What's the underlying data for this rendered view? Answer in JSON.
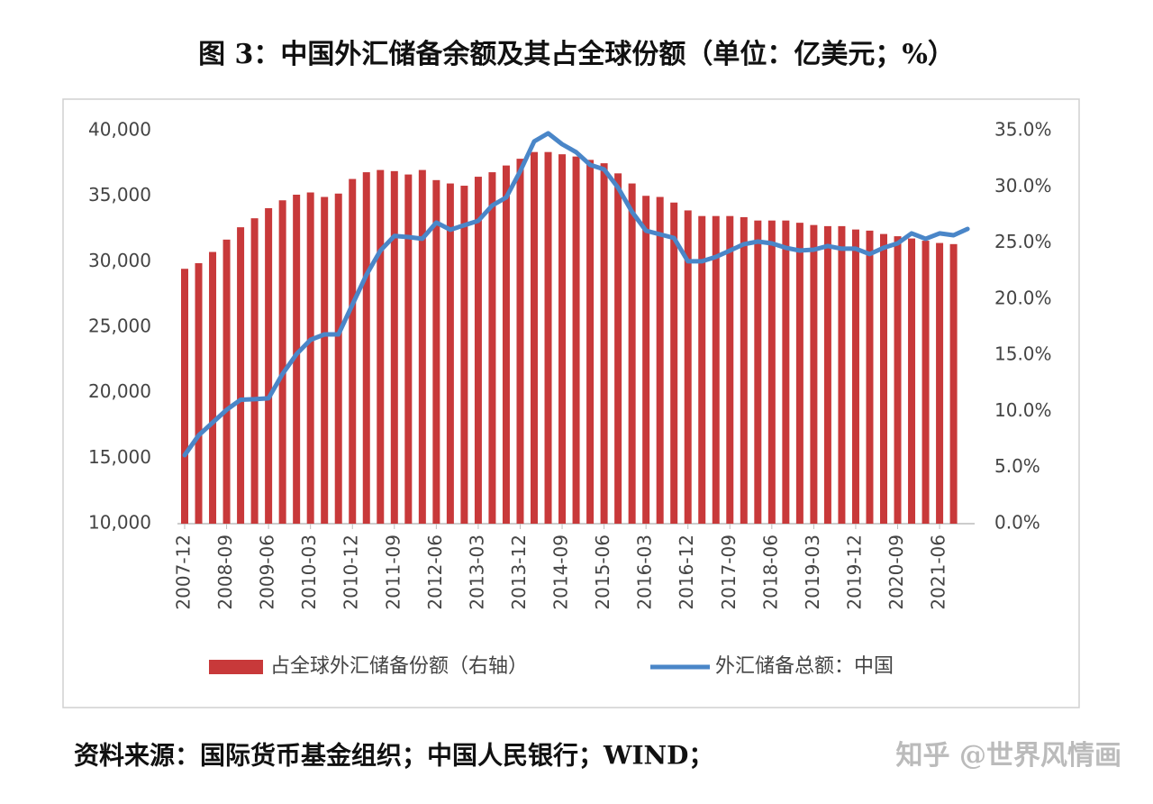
{
  "chart_data": {
    "type": "combo",
    "title": "图 3：中国外汇储备余额及其占全球份额（单位：亿美元；%）",
    "source": "资料来源：国际货币基金组织；中国人民银行；WIND；",
    "watermark": "知乎 @世界风情画",
    "categories": [
      "2007-12",
      null,
      null,
      "2008-09",
      null,
      null,
      "2009-06",
      null,
      null,
      "2010-03",
      null,
      null,
      "2010-12",
      null,
      null,
      "2011-09",
      null,
      null,
      "2012-06",
      null,
      null,
      "2013-03",
      null,
      null,
      "2013-12",
      null,
      null,
      "2014-09",
      null,
      null,
      "2015-06",
      null,
      null,
      "2016-03",
      null,
      null,
      "2016-12",
      null,
      null,
      "2017-09",
      null,
      null,
      "2018-06",
      null,
      null,
      "2019-03",
      null,
      null,
      "2019-12",
      null,
      null,
      "2020-09",
      null,
      null,
      "2021-06",
      null,
      null
    ],
    "series": [
      {
        "name": "占全球外汇储备份额（右轴）",
        "type": "bar",
        "axis": "y2",
        "color": "#c8393a",
        "values": [
          22.7,
          23.2,
          24.2,
          25.3,
          26.4,
          27.2,
          28.1,
          28.8,
          29.3,
          29.5,
          29.1,
          29.4,
          30.7,
          31.3,
          31.5,
          31.4,
          31.1,
          31.5,
          30.6,
          30.3,
          30.1,
          30.9,
          31.3,
          31.9,
          32.5,
          33.1,
          33.1,
          32.9,
          32.7,
          32.4,
          32.1,
          31.2,
          30.3,
          29.2,
          29.1,
          28.6,
          27.9,
          27.4,
          27.4,
          27.4,
          27.3,
          27.0,
          27.0,
          27.0,
          26.8,
          26.6,
          26.5,
          26.5,
          26.2,
          26.1,
          25.8,
          25.6,
          25.4,
          25.2,
          25.0,
          24.9,
          null
        ]
      },
      {
        "name": "外汇储备总额：中国",
        "type": "line",
        "axis": "y",
        "color": "#4a86c8",
        "values": [
          15230,
          16740,
          17710,
          18700,
          19460,
          19500,
          19570,
          21430,
          22940,
          24040,
          24450,
          24450,
          26720,
          29000,
          30850,
          31960,
          31880,
          31750,
          32990,
          32440,
          32780,
          33120,
          34290,
          34910,
          36910,
          39180,
          39800,
          38970,
          38360,
          37390,
          37050,
          35660,
          33810,
          32360,
          32090,
          31810,
          30030,
          30030,
          30370,
          30850,
          31340,
          31540,
          31400,
          31060,
          30850,
          30920,
          31200,
          30990,
          30990,
          30580,
          31060,
          31400,
          32160,
          31750,
          32160,
          32020,
          32500
        ]
      }
    ],
    "ylim": [
      10000,
      40000
    ],
    "yticks": [
      {
        "value": 10000,
        "label": "10,000"
      },
      {
        "value": 15000,
        "label": "15,000"
      },
      {
        "value": 20000,
        "label": "20,000"
      },
      {
        "value": 25000,
        "label": "25,000"
      },
      {
        "value": 30000,
        "label": "30,000"
      },
      {
        "value": 35000,
        "label": "35,000"
      },
      {
        "value": 40000,
        "label": "40,000"
      }
    ],
    "y2lim": [
      0,
      35
    ],
    "y2ticks": [
      {
        "value": 0,
        "label": "0.0%"
      },
      {
        "value": 5,
        "label": "5.0%"
      },
      {
        "value": 10,
        "label": "10.0%"
      },
      {
        "value": 15,
        "label": "15.0%"
      },
      {
        "value": 20,
        "label": "20.0%"
      },
      {
        "value": 25,
        "label": "25.0%"
      },
      {
        "value": 30,
        "label": "30.0%"
      },
      {
        "value": 35,
        "label": "35.0%"
      }
    ],
    "grid": false,
    "legend": "bottom"
  }
}
